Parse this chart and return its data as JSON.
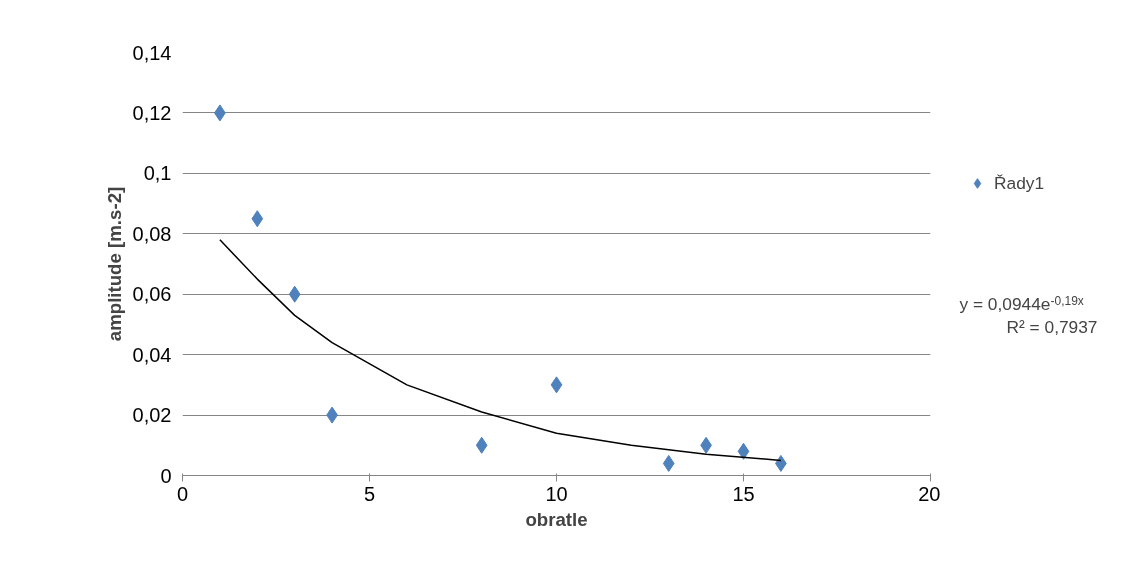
{
  "chart_data": {
    "type": "scatter",
    "xlabel": "obratle",
    "ylabel": "amplitude [m.s-2]",
    "x": [
      1,
      2,
      3,
      4,
      8,
      10,
      13,
      14,
      15,
      16
    ],
    "series": [
      {
        "name": "Řady1",
        "color": "#4f81bd",
        "marker": "diamond",
        "values": [
          0.12,
          0.085,
          0.06,
          0.02,
          0.01,
          0.03,
          0.004,
          0.01,
          0.008,
          0.004
        ]
      },
      {
        "type": "line",
        "marker": "none",
        "color": "#000000",
        "x": [
          1,
          2,
          3,
          4,
          6,
          8,
          10,
          12,
          14,
          16
        ],
        "values": [
          0.078,
          0.065,
          0.053,
          0.044,
          0.03,
          0.021,
          0.014,
          0.01,
          0.007,
          0.005
        ]
      }
    ],
    "xlim": [
      0,
      20
    ],
    "xticks": [
      0,
      5,
      10,
      15,
      20
    ],
    "ylim": [
      0,
      0.14
    ],
    "yticks": [
      {
        "value": 0,
        "label": "0"
      },
      {
        "value": 0.02,
        "label": "0,02"
      },
      {
        "value": 0.04,
        "label": "0,04"
      },
      {
        "value": 0.06,
        "label": "0,06"
      },
      {
        "value": 0.08,
        "label": "0,08"
      },
      {
        "value": 0.1,
        "label": "0,1"
      },
      {
        "value": 0.12,
        "label": "0,12"
      },
      {
        "value": 0.14,
        "label": "0,14"
      }
    ],
    "grid": "y",
    "legend": "right",
    "line_style": "solid",
    "annotations": [
      "y = 0,0944e$^{-0,19x}$",
      "R² = 0,7937"
    ]
  }
}
